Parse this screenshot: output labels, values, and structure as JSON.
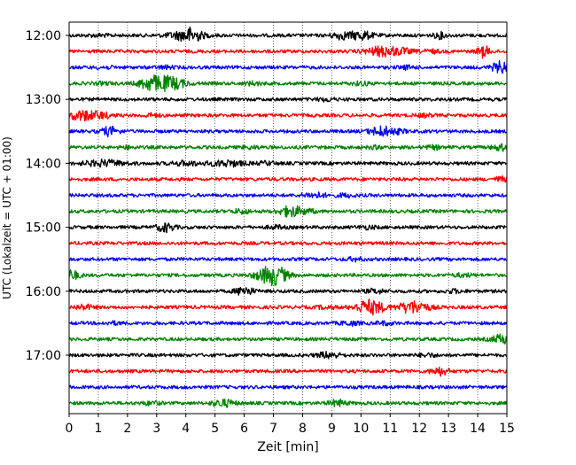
{
  "chart_data": {
    "type": "line",
    "title": "",
    "xlabel": "Zeit  [min]",
    "ylabel": "UTC (Lokalzeit = UTC + 01:00)",
    "xlim": [
      0,
      15
    ],
    "x_ticks": [
      "0",
      "1",
      "2",
      "3",
      "4",
      "5",
      "6",
      "7",
      "8",
      "9",
      "10",
      "11",
      "12",
      "13",
      "14",
      "15"
    ],
    "y_tick_labels": [
      "12:00",
      "13:00",
      "14:00",
      "15:00",
      "16:00",
      "17:00"
    ],
    "grid": "vertical dotted",
    "colors": {
      "black": "#000000",
      "red": "#ff0000",
      "blue": "#0000ff",
      "green": "#008000"
    },
    "trace_interval_min": 15,
    "traces": [
      {
        "start": "12:00",
        "color": "black",
        "events": [
          [
            1.0,
            1.0,
            0.4
          ],
          [
            4.0,
            4.5,
            0.6
          ],
          [
            4.2,
            4.0,
            0.3
          ],
          [
            9.3,
            3.5,
            0.3
          ],
          [
            10.0,
            4.5,
            0.4
          ],
          [
            12.7,
            3.0,
            0.2
          ]
        ]
      },
      {
        "start": "12:15",
        "color": "red",
        "events": [
          [
            10.8,
            5.0,
            0.6
          ],
          [
            11.5,
            1.5,
            0.3
          ],
          [
            12.4,
            1.5,
            0.3
          ],
          [
            14.2,
            6.0,
            0.2
          ]
        ]
      },
      {
        "start": "12:30",
        "color": "blue",
        "events": [
          [
            1.2,
            1.0,
            0.3
          ],
          [
            3.3,
            1.2,
            0.3
          ],
          [
            11.6,
            1.5,
            0.3
          ],
          [
            14.8,
            6.0,
            0.3
          ]
        ]
      },
      {
        "start": "12:45",
        "color": "green",
        "events": [
          [
            1.2,
            1.0,
            0.3
          ],
          [
            2.7,
            4.0,
            0.3
          ],
          [
            3.2,
            7.0,
            0.6
          ],
          [
            3.7,
            2.0,
            0.4
          ],
          [
            6.3,
            1.5,
            0.3
          ],
          [
            10.0,
            1.5,
            0.3
          ]
        ]
      },
      {
        "start": "13:00",
        "color": "black",
        "events": [
          [
            8.8,
            1.5,
            0.3
          ]
        ]
      },
      {
        "start": "13:15",
        "color": "red",
        "events": [
          [
            0.5,
            5.0,
            0.6
          ],
          [
            1.2,
            1.5,
            0.3
          ],
          [
            2.8,
            1.5,
            0.3
          ],
          [
            12.2,
            1.2,
            0.3
          ]
        ]
      },
      {
        "start": "13:30",
        "color": "blue",
        "events": [
          [
            1.4,
            4.5,
            0.3
          ],
          [
            10.7,
            5.0,
            0.4
          ],
          [
            11.3,
            1.5,
            0.3
          ]
        ]
      },
      {
        "start": "13:45",
        "color": "green",
        "events": [
          [
            2.0,
            1.2,
            0.3
          ],
          [
            6.2,
            1.2,
            0.3
          ],
          [
            10.5,
            1.2,
            0.3
          ],
          [
            12.5,
            1.5,
            0.3
          ],
          [
            14.8,
            3.0,
            0.3
          ]
        ]
      },
      {
        "start": "14:00",
        "color": "black",
        "events": [
          [
            1.2,
            3.0,
            0.7
          ],
          [
            4.0,
            2.0,
            0.5
          ],
          [
            5.4,
            3.0,
            0.6
          ],
          [
            6.8,
            1.5,
            0.3
          ]
        ]
      },
      {
        "start": "14:15",
        "color": "red",
        "events": [
          [
            14.8,
            2.5,
            0.2
          ]
        ]
      },
      {
        "start": "14:30",
        "color": "blue",
        "events": [
          [
            8.4,
            2.5,
            0.4
          ],
          [
            9.5,
            1.5,
            0.3
          ]
        ]
      },
      {
        "start": "14:45",
        "color": "green",
        "events": [
          [
            5.9,
            2.0,
            0.3
          ],
          [
            7.6,
            5.5,
            0.4
          ],
          [
            8.2,
            1.5,
            0.3
          ]
        ]
      },
      {
        "start": "15:00",
        "color": "black",
        "events": [
          [
            3.3,
            4.5,
            0.3
          ],
          [
            7.1,
            1.5,
            0.3
          ],
          [
            10.2,
            1.5,
            0.3
          ]
        ]
      },
      {
        "start": "15:15",
        "color": "red",
        "events": []
      },
      {
        "start": "15:30",
        "color": "blue",
        "events": [
          [
            9.8,
            1.5,
            0.3
          ]
        ]
      },
      {
        "start": "15:45",
        "color": "green",
        "events": [
          [
            0.05,
            5.0,
            0.3
          ],
          [
            6.8,
            4.5,
            0.5
          ],
          [
            7.0,
            6.0,
            0.4
          ],
          [
            7.3,
            2.0,
            0.3
          ],
          [
            13.5,
            1.5,
            0.3
          ]
        ]
      },
      {
        "start": "16:00",
        "color": "black",
        "events": [
          [
            6.0,
            4.5,
            0.3
          ],
          [
            10.5,
            2.0,
            0.3
          ],
          [
            13.2,
            1.5,
            0.3
          ]
        ]
      },
      {
        "start": "16:15",
        "color": "red",
        "events": [
          [
            0.5,
            2.5,
            0.3
          ],
          [
            10.3,
            7.5,
            0.5
          ],
          [
            11.8,
            6.5,
            0.5
          ],
          [
            8.8,
            1.5,
            0.3
          ]
        ]
      },
      {
        "start": "16:30",
        "color": "blue",
        "events": [
          [
            1.5,
            1.2,
            0.3
          ],
          [
            9.6,
            2.0,
            0.3
          ],
          [
            10.8,
            1.5,
            0.3
          ]
        ]
      },
      {
        "start": "16:45",
        "color": "green",
        "events": [
          [
            14.9,
            5.0,
            0.4
          ]
        ]
      },
      {
        "start": "17:00",
        "color": "black",
        "events": [
          [
            8.9,
            3.0,
            0.4
          ],
          [
            12.3,
            1.5,
            0.3
          ]
        ]
      },
      {
        "start": "17:15",
        "color": "red",
        "events": [
          [
            12.7,
            4.0,
            0.3
          ]
        ]
      },
      {
        "start": "17:30",
        "color": "blue",
        "events": []
      },
      {
        "start": "17:45",
        "color": "green",
        "events": [
          [
            2.8,
            1.5,
            0.3
          ],
          [
            5.3,
            3.5,
            0.4
          ],
          [
            9.2,
            3.0,
            0.3
          ]
        ]
      }
    ]
  }
}
